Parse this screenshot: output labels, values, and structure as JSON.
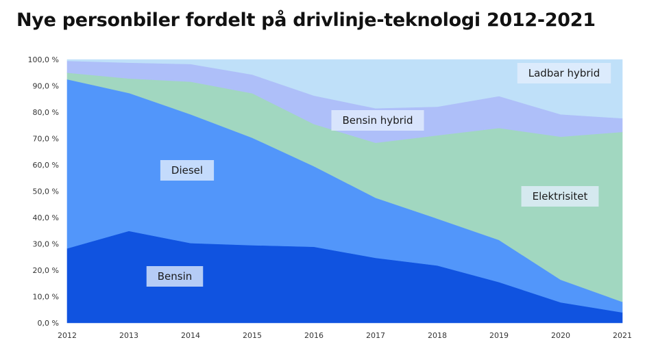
{
  "title": "Nye personbiler fordelt på drivlinje-teknologi 2012-2021",
  "chart_data": {
    "type": "area",
    "stacked": true,
    "title": "Nye personbiler fordelt på drivlinje-teknologi 2012-2021",
    "x": [
      "2012",
      "2013",
      "2014",
      "2015",
      "2016",
      "2017",
      "2018",
      "2019",
      "2020",
      "2021"
    ],
    "ylim": [
      0,
      100
    ],
    "y_ticks": [
      "0,0 %",
      "10,0 %",
      "20,0 %",
      "30,0 %",
      "40,0 %",
      "50,0 %",
      "60,0 %",
      "70,0 %",
      "80,0 %",
      "90,0 %",
      "100,0 %"
    ],
    "grid": false,
    "legend": "labels placed inside areas",
    "series": [
      {
        "name": "Bensin",
        "color": "#1053e0",
        "values": [
          28.3,
          34.9,
          30.3,
          29.5,
          28.9,
          24.7,
          21.8,
          15.5,
          7.8,
          4.0
        ]
      },
      {
        "name": "Diesel",
        "color": "#5296fa",
        "values": [
          64.2,
          52.4,
          48.9,
          40.8,
          30.6,
          22.8,
          17.8,
          16.0,
          8.6,
          4.0
        ]
      },
      {
        "name": "Elektrisitet",
        "color": "#a1d7c0",
        "values": [
          2.5,
          5.5,
          12.4,
          16.9,
          16.0,
          20.9,
          31.6,
          42.5,
          54.3,
          64.5
        ]
      },
      {
        "name": "Bensin hybrid",
        "color": "#aebff9",
        "values": [
          4.5,
          6.0,
          6.7,
          7.1,
          10.8,
          13.1,
          10.9,
          12.1,
          8.5,
          5.2
        ]
      },
      {
        "name": "Ladbar hybrid",
        "color": "#bfe0f9",
        "values": [
          0.5,
          1.2,
          1.7,
          5.7,
          13.7,
          18.5,
          17.9,
          13.9,
          20.8,
          22.3
        ]
      }
    ]
  }
}
